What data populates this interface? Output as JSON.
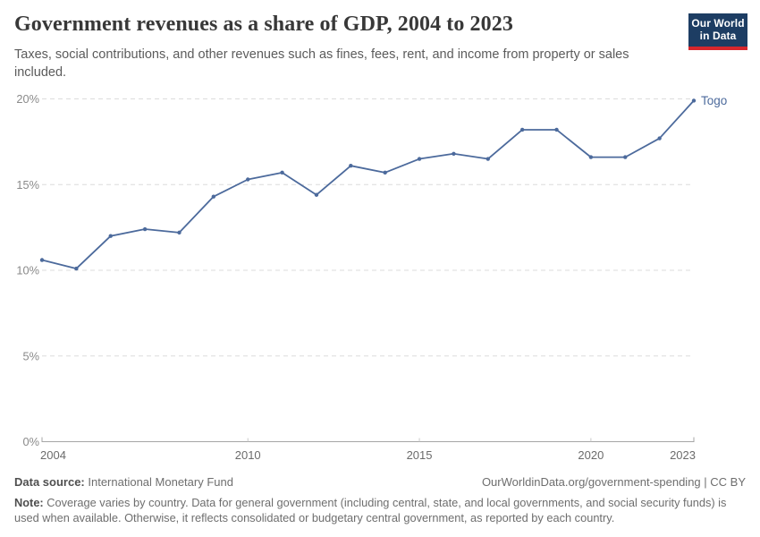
{
  "header": {
    "title": "Government revenues as a share of GDP, 2004 to 2023",
    "subtitle": "Taxes, social contributions, and other revenues such as fines, fees, rent, and income from property or sales included.",
    "logo": {
      "line1": "Our World",
      "line2": "in Data",
      "bg_color": "#1d3d63",
      "accent_color": "#d6262c"
    }
  },
  "chart_data": {
    "type": "line",
    "title": "Government revenues as a share of GDP, 2004 to 2023",
    "series": [
      {
        "name": "Togo",
        "color": "#4C6A9C",
        "x": [
          2004,
          2005,
          2006,
          2007,
          2008,
          2009,
          2010,
          2011,
          2012,
          2013,
          2014,
          2015,
          2016,
          2017,
          2018,
          2019,
          2020,
          2021,
          2022,
          2023
        ],
        "values": [
          10.6,
          10.1,
          12.0,
          12.4,
          12.2,
          14.3,
          15.3,
          15.7,
          14.4,
          16.1,
          15.7,
          16.5,
          16.8,
          16.5,
          18.2,
          18.2,
          16.6,
          16.6,
          17.7,
          19.9
        ]
      }
    ],
    "xlabel": "",
    "ylabel": "",
    "xlim": [
      2004,
      2023
    ],
    "ylim": [
      0,
      20
    ],
    "x_ticks": [
      2004,
      2010,
      2015,
      2020,
      2023
    ],
    "y_ticks": [
      {
        "value": 0,
        "label": "0%"
      },
      {
        "value": 5,
        "label": "5%"
      },
      {
        "value": 10,
        "label": "10%"
      },
      {
        "value": 15,
        "label": "15%"
      },
      {
        "value": 20,
        "label": "20%"
      }
    ],
    "grid": "horizontal-dashed",
    "legend_position": "end-of-line-label",
    "end_label": "Togo",
    "colors": {
      "grid_line": "#dcdcdc",
      "axis_line": "#a5a5a5",
      "mid_tick": "#c9c9c9",
      "y_tick_text": "#8a8a8a",
      "x_tick_text": "#6b6b6b"
    }
  },
  "footer": {
    "source_label": "Data source:",
    "source_value": "International Monetary Fund",
    "link": "OurWorldinData.org/government-spending | CC BY",
    "note_label": "Note:",
    "note_text": "Coverage varies by country. Data for general government (including central, state, and local governments, and social security funds) is used when available. Otherwise, it reflects consolidated or budgetary central government, as reported by each country."
  }
}
